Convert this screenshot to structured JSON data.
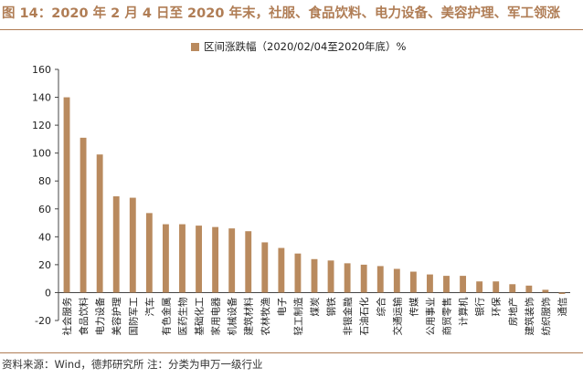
{
  "header": {
    "title": "图 14：2020 年 2 月 4 日至 2020 年末，社服、食品饮料、电力设备、美容护理、军工领涨"
  },
  "footer": {
    "source": "资料来源：Wind，德邦研究所  注：分类为申万一级行业"
  },
  "colors": {
    "bar": "#b98a5e",
    "accent": "#b07d55",
    "axis": "#444444"
  },
  "chart_data": {
    "type": "bar",
    "title": "",
    "legend": {
      "label": "区间涨跌幅（2020/02/04至2020年底）%",
      "position": "top-center"
    },
    "xlabel": "",
    "ylabel": "",
    "ylim": [
      -20,
      160
    ],
    "yticks": [
      -20,
      0,
      20,
      40,
      60,
      80,
      100,
      120,
      140,
      160
    ],
    "grid": false,
    "categories": [
      "社会服务",
      "食品饮料",
      "电力设备",
      "美容护理",
      "国防军工",
      "汽车",
      "有色金属",
      "医药生物",
      "基础化工",
      "家用电器",
      "机械设备",
      "建筑材料",
      "农林牧渔",
      "电子",
      "轻工制造",
      "煤炭",
      "钢铁",
      "非银金融",
      "石油石化",
      "综合",
      "交通运输",
      "传媒",
      "公用事业",
      "商贸零售",
      "计算机",
      "银行",
      "环保",
      "房地产",
      "建筑装饰",
      "纺织服饰",
      "通信"
    ],
    "values": [
      140,
      111,
      99,
      69,
      68,
      57,
      49,
      49,
      48,
      47,
      46,
      44,
      36,
      32,
      28,
      24,
      23,
      21,
      20,
      19,
      17,
      15,
      13,
      12,
      12,
      8,
      8,
      6,
      5,
      2,
      -1
    ]
  }
}
